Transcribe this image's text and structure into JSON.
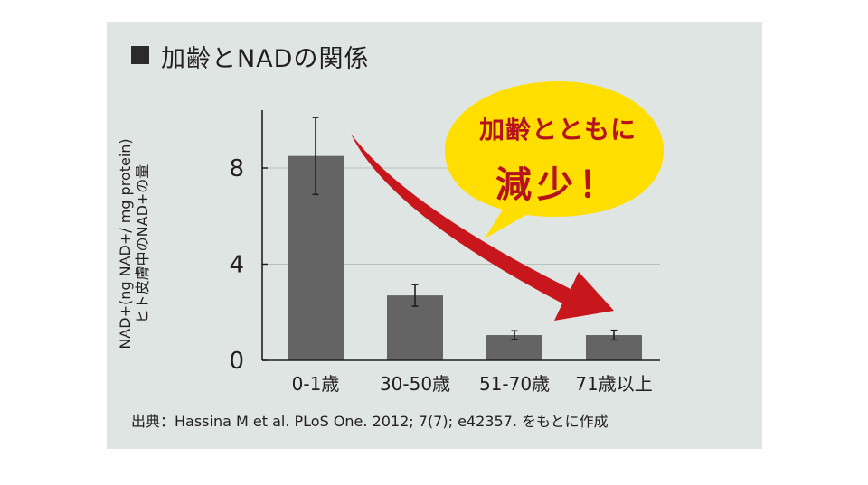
{
  "title": "加齢とNADの関係",
  "source": "出典：Hassina M et al. PLoS One. 2012; 7(7); e42357. をもとに作成",
  "callout": {
    "line1": "加齢とともに",
    "line2": "減少！"
  },
  "colors": {
    "panel_bg": "#dfe5e2",
    "bar": "#656464",
    "arrow": "#c8161d",
    "callout_fill": "#ffde00",
    "callout_text": "#b5121b"
  },
  "chart_data": {
    "type": "bar",
    "title": "加齢とNADの関係",
    "xlabel": "",
    "ylabel_lines": [
      "NAD+(ng NAD+/ mg protein)",
      "ヒト皮膚中のNAD+の量"
    ],
    "categories": [
      "0-1歳",
      "30-50歳",
      "51-70歳",
      "71歳以上"
    ],
    "values": [
      8.5,
      2.7,
      1.05,
      1.05
    ],
    "error": [
      1.6,
      0.45,
      0.18,
      0.2
    ],
    "yticks": [
      0,
      4,
      8
    ],
    "ylim": [
      0,
      10.5
    ],
    "grid": true
  }
}
